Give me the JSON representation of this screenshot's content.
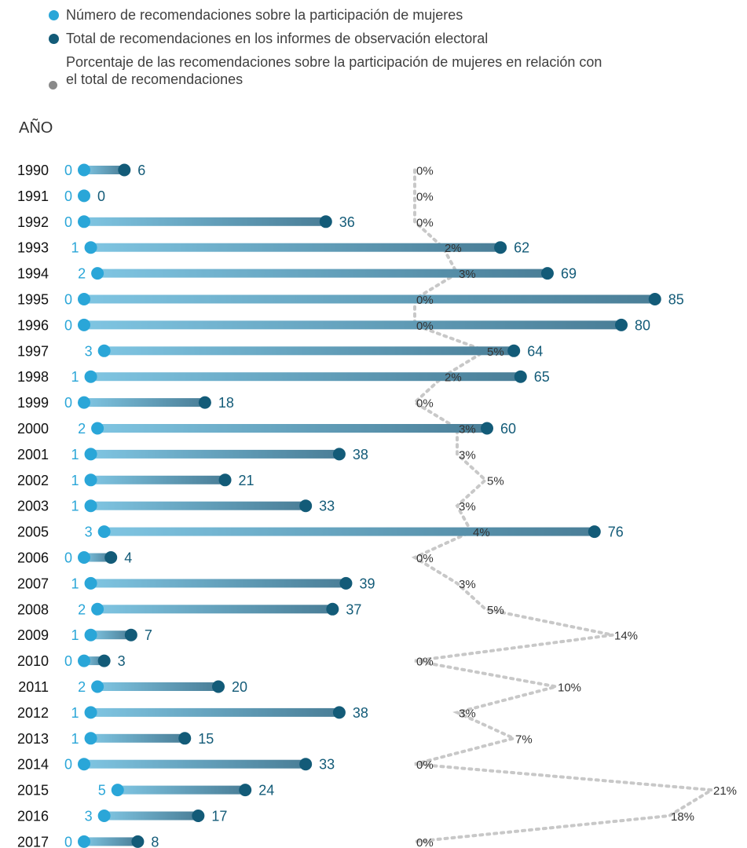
{
  "legend": [
    {
      "label": "Número de recomendaciones sobre la participación de mujeres",
      "color": "#2aa6d8"
    },
    {
      "label": "Total de recomendaciones en los informes de observación electoral",
      "color": "#135b78"
    },
    {
      "label": "Porcentaje de las recomendaciones sobre la participación de mujeres en relación con el total de recomendaciones",
      "color": "#8a8a8a"
    }
  ],
  "colors": {
    "women": "#2aa6d8",
    "total": "#135b78",
    "bar_from": "#7fc5e2",
    "bar_to": "#4a7e97",
    "percent_line": "#c8c8c8",
    "percent_text": "#333333",
    "year_text": "#111111"
  },
  "chart_data": {
    "type": "dumbbell",
    "row_header": "AÑO",
    "categories": [
      "1990",
      "1991",
      "1992",
      "1993",
      "1994",
      "1995",
      "1996",
      "1997",
      "1998",
      "1999",
      "2000",
      "2001",
      "2002",
      "2003",
      "2005",
      "2006",
      "2007",
      "2008",
      "2009",
      "2010",
      "2011",
      "2012",
      "2013",
      "2014",
      "2015",
      "2016",
      "2017"
    ],
    "series": [
      {
        "name": "Número de recomendaciones sobre la participación de mujeres",
        "values": [
          0,
          0,
          0,
          1,
          2,
          0,
          0,
          3,
          1,
          0,
          2,
          1,
          1,
          1,
          3,
          0,
          1,
          2,
          1,
          0,
          2,
          1,
          1,
          0,
          5,
          3,
          0
        ]
      },
      {
        "name": "Total de recomendaciones en los informes de observación electoral",
        "values": [
          6,
          0,
          36,
          62,
          69,
          85,
          80,
          64,
          65,
          18,
          60,
          38,
          21,
          33,
          76,
          4,
          39,
          37,
          7,
          3,
          20,
          38,
          15,
          33,
          24,
          17,
          8
        ]
      },
      {
        "name": "Porcentaje de las recomendaciones sobre la participación de mujeres en relación con el total de recomendaciones",
        "values": [
          0,
          0,
          0,
          2,
          3,
          0,
          0,
          5,
          2,
          0,
          3,
          3,
          5,
          3,
          4,
          0,
          3,
          5,
          14,
          0,
          10,
          3,
          7,
          0,
          21,
          18,
          0
        ],
        "unit": "%"
      }
    ],
    "x_range": [
      0,
      85
    ],
    "pct_range": [
      0,
      21
    ],
    "grid": false,
    "legend_position": "top-left"
  }
}
